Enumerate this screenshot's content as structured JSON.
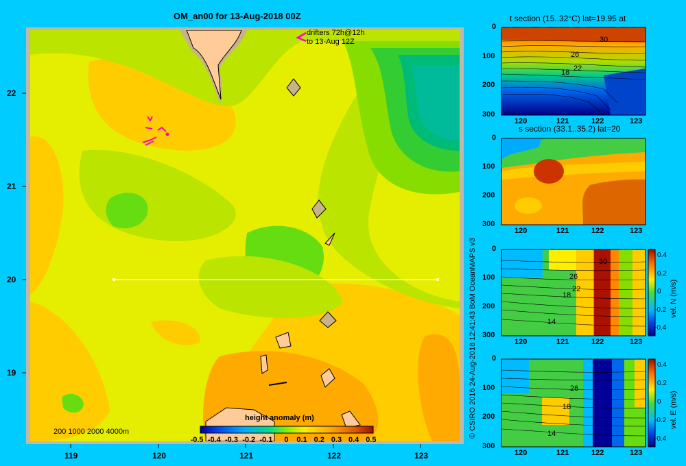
{
  "chart_data": [
    {
      "type": "heatmap",
      "title": "OM_an00 for 13-Aug-2018 00Z",
      "xlim": [
        118.5,
        123.5
      ],
      "ylim": [
        18.3,
        22.7
      ],
      "x_ticks": [
        "119",
        "120",
        "121",
        "122",
        "123"
      ],
      "y_ticks": [
        "19",
        "20",
        "21",
        "22"
      ],
      "annotation": [
        "drifters 72h@12h",
        "to 13-Aug 12Z"
      ],
      "depth_legend": "200  1000  2000  4000m",
      "section_line": {
        "lat": 20,
        "lon_from": 119.5,
        "lon_to": 123.2
      },
      "colorbar": {
        "label": "height anomaly (m)",
        "ticks": [
          "-0.5",
          "-0.4",
          "-0.3",
          "-0.2",
          "-0.1",
          "0",
          "0.1",
          "0.2",
          "0.3",
          "0.4",
          "0.5"
        ],
        "range": [
          -0.5,
          0.5
        ]
      }
    },
    {
      "type": "heatmap",
      "title": "t section (15..32°C) lat=19.95 at",
      "x_ticks": [
        "120",
        "121",
        "122",
        "123"
      ],
      "y_ticks": [
        "0",
        "100",
        "200",
        "300"
      ],
      "contour_labels": [
        "30",
        "26",
        "22",
        "18"
      ]
    },
    {
      "type": "heatmap",
      "title": "s section (33.1..35.2) lat=20",
      "x_ticks": [
        "120",
        "121",
        "122",
        "123"
      ],
      "y_ticks": [
        "0",
        "100",
        "200",
        "300"
      ]
    },
    {
      "type": "heatmap",
      "title": "",
      "x_ticks": [
        "120",
        "121",
        "122",
        "123"
      ],
      "y_ticks": [
        "0",
        "100",
        "200",
        "300"
      ],
      "contour_labels": [
        "30",
        "26",
        "22",
        "18",
        "14"
      ],
      "colorbar": {
        "label": "vel. N (m/s)",
        "ticks": [
          "0.4",
          "0.2",
          "0",
          "-0.2",
          "-0.4"
        ]
      }
    },
    {
      "type": "heatmap",
      "title": "",
      "x_ticks": [
        "120",
        "121",
        "122",
        "123"
      ],
      "y_ticks": [
        "0",
        "100",
        "200",
        "300"
      ],
      "contour_labels": [
        "26",
        "18",
        "14"
      ],
      "colorbar": {
        "label": "vel. E (m/s)",
        "ticks": [
          "0.4",
          "0.2",
          "0",
          "-0.2",
          "-0.4"
        ]
      }
    }
  ],
  "credit": "© CSIRO 2016   24-Aug-2018 12:41:43 BoM OceanMAPS v3",
  "colors": {
    "background": "#00ccff",
    "land": "#ffcc99",
    "shelf": "#c8b28a",
    "frame": "#c0b8a8"
  }
}
